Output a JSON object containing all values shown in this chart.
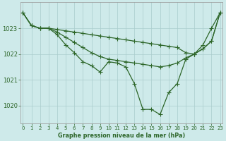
{
  "title": "Graphe pression niveau de la mer (hPa)",
  "bg_color": "#ceeaea",
  "grid_color": "#aacccc",
  "line_color": "#2d6629",
  "x_ticks": [
    0,
    1,
    2,
    3,
    4,
    5,
    6,
    7,
    8,
    9,
    10,
    11,
    12,
    13,
    14,
    15,
    16,
    17,
    18,
    19,
    20,
    21,
    22,
    23
  ],
  "y_ticks": [
    1020,
    1021,
    1022,
    1023
  ],
  "ylim": [
    1019.3,
    1024.0
  ],
  "xlim": [
    -0.3,
    23.3
  ],
  "line_top": [
    1023.6,
    1023.1,
    1023.0,
    1023.0,
    1022.95,
    1022.9,
    1022.85,
    1022.8,
    1022.75,
    1022.7,
    1022.65,
    1022.6,
    1022.55,
    1022.5,
    1022.45,
    1022.4,
    1022.35,
    1022.3,
    1022.25,
    1022.05,
    1022.0,
    1022.2,
    1022.5,
    1023.6
  ],
  "line_mid": [
    1023.6,
    1023.1,
    1023.0,
    1023.0,
    1022.85,
    1022.65,
    1022.45,
    1022.25,
    1022.05,
    1021.9,
    1021.8,
    1021.75,
    1021.7,
    1021.65,
    1021.6,
    1021.55,
    1021.5,
    1021.55,
    1021.65,
    1021.85,
    1022.0,
    1022.2,
    1022.5,
    1023.6
  ],
  "line_bot": [
    1023.6,
    1023.1,
    1023.0,
    1023.0,
    1022.75,
    1022.35,
    1022.05,
    1021.7,
    1021.55,
    1021.3,
    1021.7,
    1021.65,
    1021.5,
    1020.85,
    1019.85,
    1019.85,
    1019.65,
    1020.5,
    1020.85,
    1021.8,
    1022.0,
    1022.35,
    1023.0,
    1023.6
  ]
}
